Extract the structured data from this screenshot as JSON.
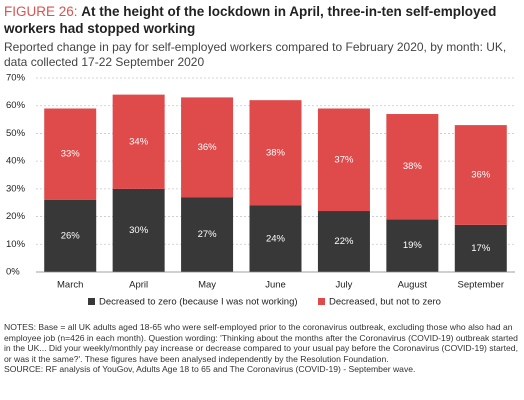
{
  "chart_data": {
    "type": "stacked-bar",
    "figure_label": "FIGURE 26:",
    "title": "At the height of the lockdown in April, three-in-ten self-employed workers had stopped working",
    "subtitle": "Reported change in pay for self-employed workers compared to February 2020, by month: UK, data collected 17-22 September 2020",
    "categories": [
      "March",
      "April",
      "May",
      "June",
      "July",
      "August",
      "September"
    ],
    "series": [
      {
        "name": "Decreased to zero (because I was not working)",
        "color": "#383838",
        "values": [
          26,
          30,
          27,
          24,
          22,
          19,
          17
        ],
        "value_labels": [
          "26%",
          "30%",
          "27%",
          "24%",
          "22%",
          "19%",
          "17%"
        ]
      },
      {
        "name": "Decreased, but not to zero",
        "color": "#df4a4a",
        "values": [
          33,
          34,
          36,
          38,
          37,
          38,
          36
        ],
        "value_labels": [
          "33%",
          "34%",
          "36%",
          "38%",
          "37%",
          "38%",
          "36%"
        ]
      }
    ],
    "ylim": [
      0,
      70
    ],
    "yticks": [
      {
        "value": 0,
        "label": "0%"
      },
      {
        "value": 10,
        "label": "10%"
      },
      {
        "value": 20,
        "label": "20%"
      },
      {
        "value": 30,
        "label": "30%"
      },
      {
        "value": 40,
        "label": "40%"
      },
      {
        "value": 50,
        "label": "50%"
      },
      {
        "value": 60,
        "label": "60%"
      },
      {
        "value": 70,
        "label": "70%"
      }
    ],
    "grid": true,
    "notes": "NOTES: Base = all UK adults aged 18-65 who were self-employed prior to the coronavirus outbreak, excluding those who also had an employee job (n=426 in each month). Question wording: 'Thinking about the months after the Coronavirus (COVID-19) outbreak started in the UK... Did your weekly/monthly pay increase or decrease compared to your usual pay before the Coronavirus (COVID-19) started, or was it the same?'. These figures have been analysed independently by the Resolution Foundation.",
    "source": "SOURCE: RF analysis of YouGov, Adults Age 18 to 65 and The Coronavirus (COVID-19) - September wave."
  }
}
